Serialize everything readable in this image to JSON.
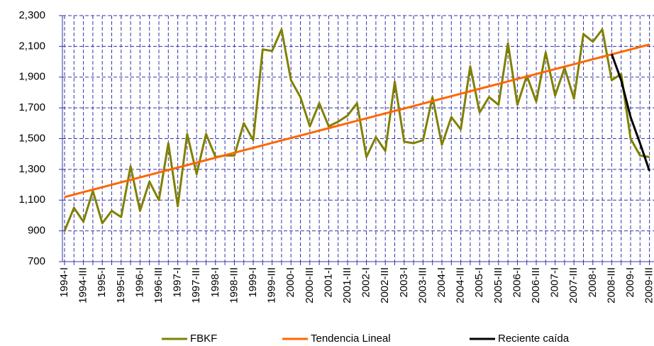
{
  "chart_data": {
    "type": "line",
    "categories": [
      "1994-I",
      null,
      "1994-III",
      null,
      "1995-I",
      null,
      "1995-III",
      null,
      "1996-I",
      null,
      "1996-III",
      null,
      "1997-I",
      null,
      "1997-III",
      null,
      "1998-I",
      null,
      "1998-III",
      null,
      "1999-I",
      null,
      "1999-III",
      null,
      "2000-I",
      null,
      "2000-III",
      null,
      "2001-I",
      null,
      "2001-III",
      null,
      "2002-I",
      null,
      "2002-III",
      null,
      "2003-I",
      null,
      "2003-III",
      null,
      "2004-I",
      null,
      "2004-III",
      null,
      "2005-I",
      null,
      "2005-III",
      null,
      "2006-I",
      null,
      "2006-III",
      null,
      "2007-I",
      null,
      "2007-III",
      null,
      "2008-I",
      null,
      "2008-III",
      null,
      "2009-I",
      null,
      "2009-III"
    ],
    "series": [
      {
        "name": "FBKF",
        "color": "#808000",
        "values": [
          900,
          1050,
          960,
          1160,
          950,
          1030,
          990,
          1320,
          1030,
          1220,
          1100,
          1470,
          1060,
          1530,
          1270,
          1530,
          1380,
          1390,
          1390,
          1600,
          1490,
          2080,
          2070,
          2210,
          1880,
          1770,
          1580,
          1730,
          1580,
          1610,
          1650,
          1730,
          1380,
          1510,
          1420,
          1870,
          1480,
          1470,
          1490,
          1770,
          1460,
          1640,
          1560,
          1970,
          1670,
          1770,
          1720,
          2120,
          1720,
          1910,
          1740,
          2060,
          1780,
          1960,
          1760,
          2180,
          2130,
          2210,
          1880,
          1920,
          1500,
          1390,
          1380
        ]
      },
      {
        "name": "Tendencia Lineal",
        "color": "#ff6600",
        "values": [
          1120,
          1136,
          1152,
          1168,
          1184,
          1200,
          1216,
          1232,
          1248,
          1264,
          1280,
          1296,
          1312,
          1328,
          1344,
          1360,
          1376,
          1392,
          1408,
          1424,
          1440,
          1456,
          1472,
          1488,
          1504,
          1520,
          1536,
          1552,
          1568,
          1584,
          1600,
          1616,
          1632,
          1648,
          1664,
          1680,
          1696,
          1712,
          1728,
          1744,
          1760,
          1776,
          1792,
          1808,
          1824,
          1840,
          1856,
          1872,
          1888,
          1904,
          1920,
          1936,
          1952,
          1968,
          1984,
          2000,
          2016,
          2032,
          2048,
          2064,
          2080,
          2096,
          2112
        ]
      },
      {
        "name": "Reciente caída",
        "color": "#000000",
        "values": [
          null,
          null,
          null,
          null,
          null,
          null,
          null,
          null,
          null,
          null,
          null,
          null,
          null,
          null,
          null,
          null,
          null,
          null,
          null,
          null,
          null,
          null,
          null,
          null,
          null,
          null,
          null,
          null,
          null,
          null,
          null,
          null,
          null,
          null,
          null,
          null,
          null,
          null,
          null,
          null,
          null,
          null,
          null,
          null,
          null,
          null,
          null,
          null,
          null,
          null,
          null,
          null,
          null,
          null,
          null,
          null,
          null,
          null,
          2050,
          1880,
          1640,
          1470,
          1290
        ]
      }
    ],
    "ylim": [
      700,
      2300
    ],
    "yticks": [
      700,
      900,
      {
        "value": 1100,
        "label": "1,100"
      },
      {
        "value": 1300,
        "label": "1,300"
      },
      {
        "value": 1500,
        "label": "1,500"
      },
      {
        "value": 1700,
        "label": "1,700"
      },
      {
        "value": 1900,
        "label": "1,900"
      },
      {
        "value": 2100,
        "label": "2,100"
      },
      {
        "value": 2300,
        "label": "2,300"
      }
    ],
    "grid": true,
    "legend": "bottom"
  }
}
